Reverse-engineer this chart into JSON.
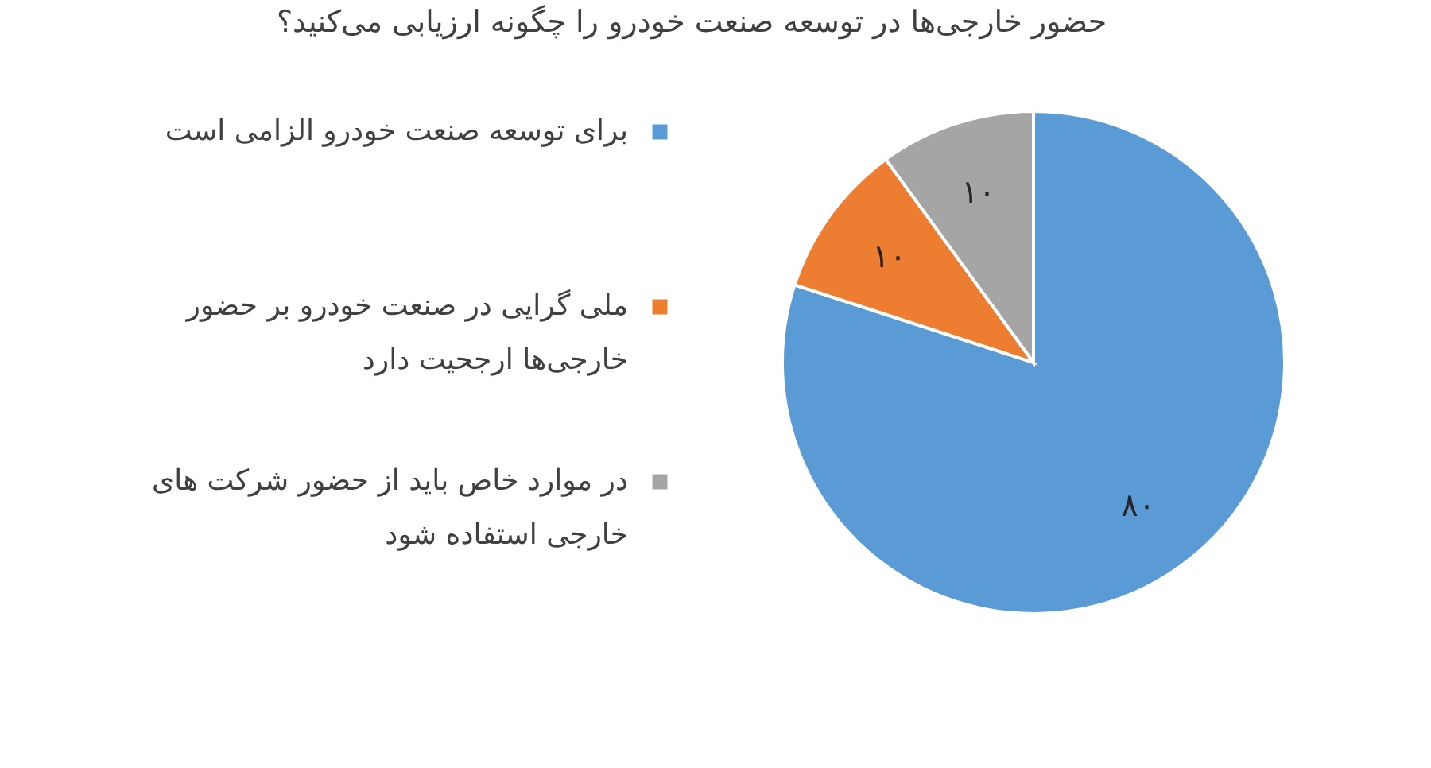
{
  "chart_data": {
    "type": "pie",
    "title": "حضور خارجی‌ها در توسعه صنعت خودرو را چگونه ارزیابی می‌کنید؟",
    "categories": [
      "برای  توسعه صنعت خودرو الزامی است",
      "ملی گرایی در صنعت خودرو بر حضور خارجی‌ها ارجحیت دارد",
      "در موارد خاص باید از حضور شرکت های خارجی استفاده شود"
    ],
    "values": [
      80,
      10,
      10
    ],
    "colors": [
      "#5b9bd5",
      "#ed7d31",
      "#a5a5a5"
    ],
    "value_labels": [
      "۸۰",
      "۱۰",
      "۱۰"
    ],
    "legend": "left"
  }
}
